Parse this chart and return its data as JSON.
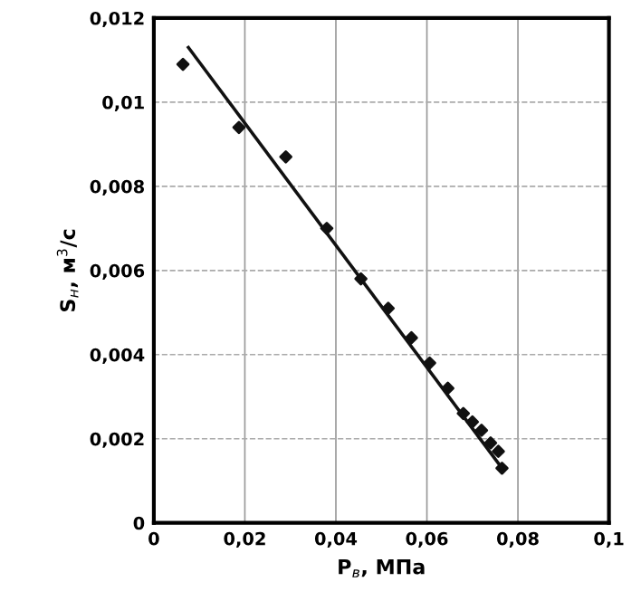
{
  "chart_data": {
    "type": "scatter",
    "xlabel": "P$_{в}$, МПа",
    "ylabel": "S$_{н}$, м$^{3}$/с",
    "x": [
      0.0064,
      0.0187,
      0.029,
      0.038,
      0.0455,
      0.0515,
      0.0566,
      0.0606,
      0.0646,
      0.068,
      0.07,
      0.072,
      0.074,
      0.0757,
      0.0765
    ],
    "series": [
      {
        "color": "#111111",
        "marker": "diamond",
        "values": [
          0.0109,
          0.0094,
          0.0087,
          0.007,
          0.0058,
          0.0051,
          0.0044,
          0.0038,
          0.0032,
          0.0026,
          0.0024,
          0.0022,
          0.0019,
          0.0017,
          0.0013
        ]
      },
      {
        "type": "line",
        "color": "#111111",
        "marker": "none",
        "x": [
          0.0076,
          0.0765
        ],
        "values": [
          0.0113,
          0.0013
        ]
      }
    ],
    "xlim": [
      0,
      0.1
    ],
    "ylim": [
      0,
      0.012
    ],
    "xticks": [
      {
        "value": 0,
        "label": "0"
      },
      {
        "value": 0.02,
        "label": "0,02"
      },
      {
        "value": 0.04,
        "label": "0,04"
      },
      {
        "value": 0.06,
        "label": "0,06"
      },
      {
        "value": 0.08,
        "label": "0,08"
      },
      {
        "value": 0.1,
        "label": "0,1"
      }
    ],
    "yticks": [
      {
        "value": 0,
        "label": "0"
      },
      {
        "value": 0.002,
        "label": "0,002"
      },
      {
        "value": 0.004,
        "label": "0,004"
      },
      {
        "value": 0.006,
        "label": "0,006"
      },
      {
        "value": 0.008,
        "label": "0,008"
      },
      {
        "value": 0.01,
        "label": "0,01"
      },
      {
        "value": 0.012,
        "label": "0,012"
      }
    ],
    "grid": true,
    "legend": false
  }
}
